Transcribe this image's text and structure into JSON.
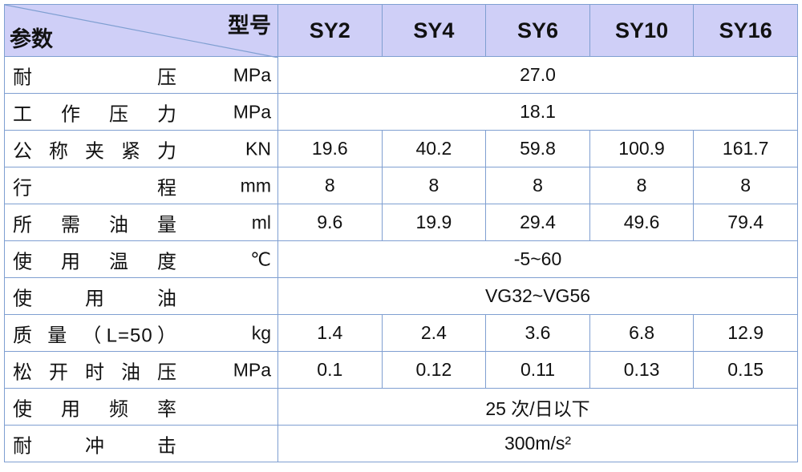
{
  "table": {
    "header": {
      "model_label": "型号",
      "param_label": "参数",
      "models": [
        "SY2",
        "SY4",
        "SY6",
        "SY10",
        "SY16"
      ]
    },
    "rows": [
      {
        "label": "耐 压",
        "unit": "MPa",
        "values": [
          "27.0"
        ]
      },
      {
        "label": "工 作 压 力",
        "unit": "MPa",
        "values": [
          "18.1"
        ]
      },
      {
        "label": "公 称 夹 紧 力",
        "unit": "KN",
        "values": [
          "19.6",
          "40.2",
          "59.8",
          "100.9",
          "161.7"
        ]
      },
      {
        "label": "行 程",
        "unit": "mm",
        "values": [
          "8",
          "8",
          "8",
          "8",
          "8"
        ]
      },
      {
        "label": "所 需 油 量",
        "unit": "ml",
        "values": [
          "9.6",
          "19.9",
          "29.4",
          "49.6",
          "79.4"
        ]
      },
      {
        "label": "使 用 温 度",
        "unit": "℃",
        "values": [
          "-5~60"
        ]
      },
      {
        "label": "使 用 油",
        "unit": "",
        "values": [
          "VG32~VG56"
        ]
      },
      {
        "label": "质 量 （L=50）",
        "unit": "kg",
        "values": [
          "1.4",
          "2.4",
          "3.6",
          "6.8",
          "12.9"
        ]
      },
      {
        "label": "松 开 时 油 压",
        "unit": "MPa",
        "values": [
          "0.1",
          "0.12",
          "0.11",
          "0.13",
          "0.15"
        ]
      },
      {
        "label": "使 用 频 率",
        "unit": "",
        "values": [
          "25 次/日以下"
        ]
      },
      {
        "label": "耐 冲 击",
        "unit": "",
        "values": [
          "300m/s²"
        ]
      }
    ]
  }
}
